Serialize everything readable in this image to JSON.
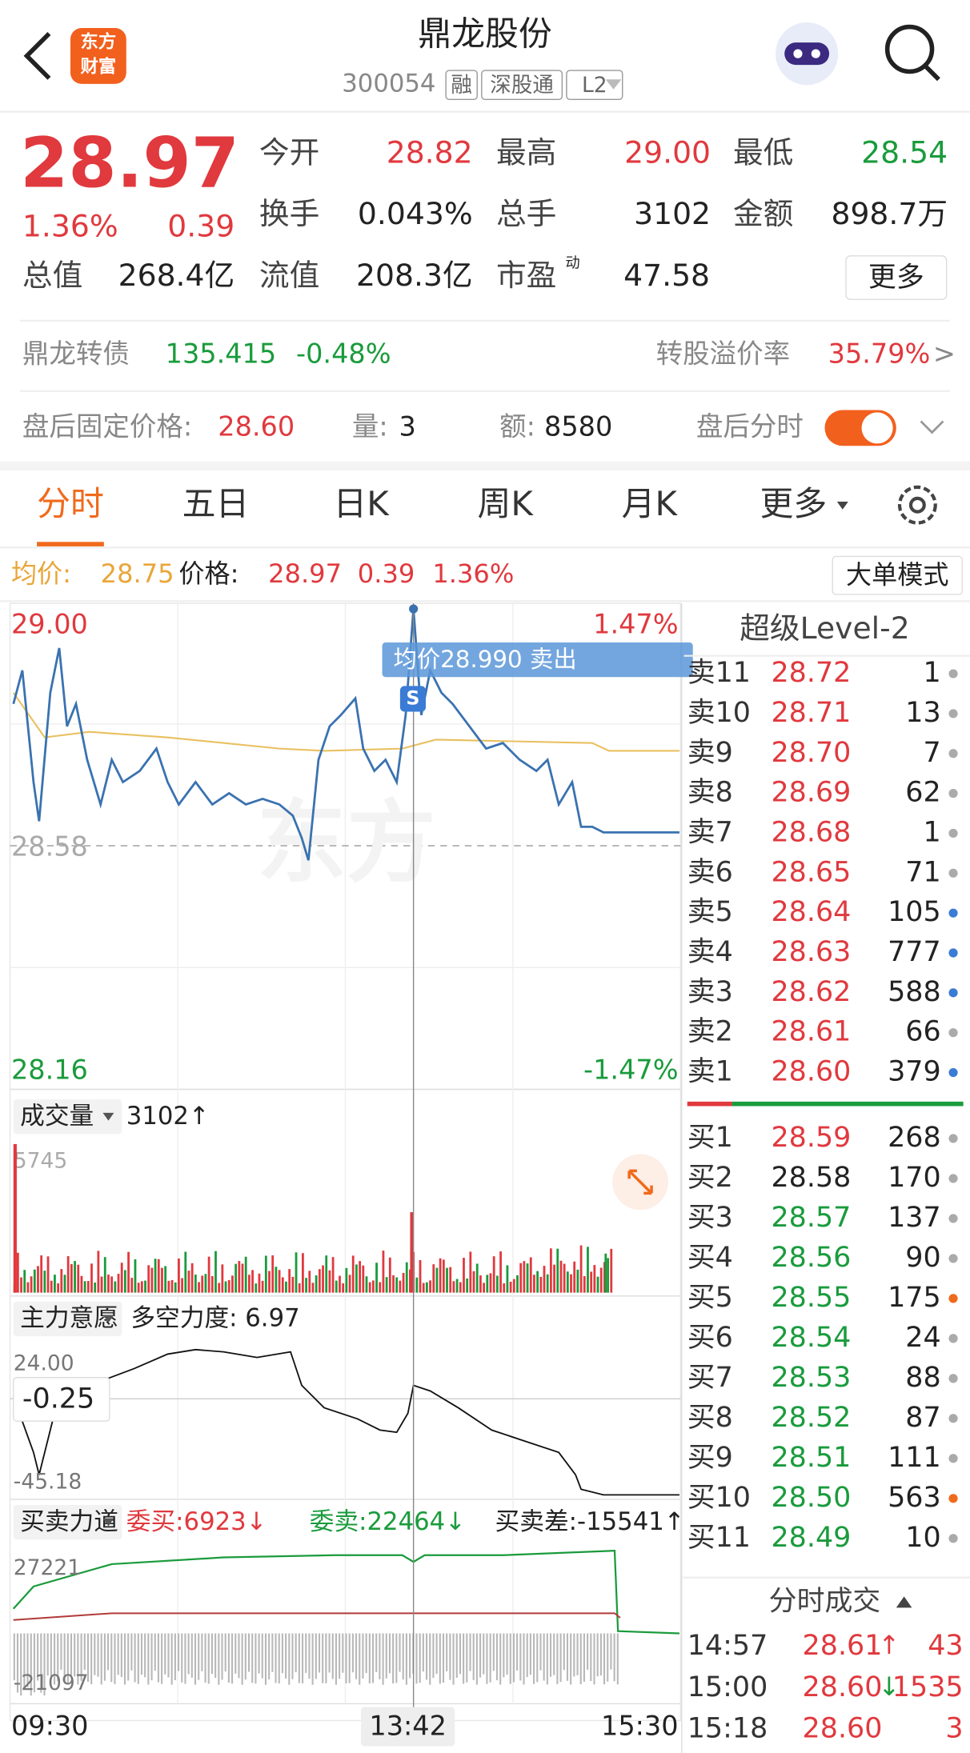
{
  "header": {
    "logo": [
      "东方",
      "财富"
    ],
    "title": "鼎龙股份",
    "code": "300054",
    "tags": [
      "融",
      "深股通",
      "L2"
    ]
  },
  "quote": {
    "price": "28.97",
    "change_pct": "1.36%",
    "change": "0.39",
    "fields": [
      {
        "label": "今开",
        "value": "28.82",
        "color": "#e0393e"
      },
      {
        "label": "最高",
        "value": "29.00",
        "color": "#e0393e"
      },
      {
        "label": "最低",
        "value": "28.54",
        "color": "#1a9b3c"
      },
      {
        "label": "换手",
        "value": "0.043%",
        "color": "#222"
      },
      {
        "label": "总手",
        "value": "3102",
        "color": "#222"
      },
      {
        "label": "金额",
        "value": "898.7万",
        "color": "#222"
      },
      {
        "label": "总值",
        "value": "268.4亿",
        "color": "#222"
      },
      {
        "label": "流值",
        "value": "208.3亿",
        "color": "#222"
      },
      {
        "label": "市盈",
        "value": "47.58",
        "color": "#222"
      }
    ],
    "pe_note": "动",
    "more": "更多"
  },
  "bond": {
    "name": "鼎龙转债",
    "price": "135.415",
    "pct": "-0.48%",
    "premium_label": "转股溢价率",
    "premium": "35.79%",
    "arrow": ">"
  },
  "after_hours": {
    "label": "盘后固定价格:",
    "price": "28.60",
    "vol_label": "量:",
    "vol": "3",
    "amt_label": "额:",
    "amt": "8580",
    "toggle_label": "盘后分时"
  },
  "tabs": [
    "分时",
    "五日",
    "日K",
    "周K",
    "月K",
    "更多"
  ],
  "legend": {
    "avg_label": "均价:",
    "avg": "28.75",
    "price_label": "价格:",
    "price": "28.97",
    "change": "0.39",
    "pct": "1.36%",
    "mode": "大单模式"
  },
  "chart": {
    "ymax": "29.00",
    "ymin": "28.16",
    "pct_max": "1.47%",
    "pct_min": "-1.47%",
    "prev": "28.58",
    "tooltip": "均价28.990  卖出",
    "marker": "S"
  },
  "volume": {
    "label": "成交量",
    "value": "3102↑",
    "max": "5745"
  },
  "main_force": {
    "label": "主力意愿",
    "title": "多空力度: 6.97",
    "top": "24.00",
    "bottom": "-45.18",
    "cursor": "-0.25"
  },
  "power": {
    "label": "买卖力道",
    "buy": "委买:6923↓",
    "sell": "委卖:22464↓",
    "diff": "买卖差:-15541↑",
    "top": "27221",
    "bottom": "-21097"
  },
  "xaxis": {
    "start": "09:30",
    "cursor": "13:42",
    "end": "15:30"
  },
  "orderbook": {
    "title": "超级Level-2",
    "asks": [
      {
        "label": "卖11",
        "price": "28.72",
        "vol": "1",
        "dot": "#aaa"
      },
      {
        "label": "卖10",
        "price": "28.71",
        "vol": "13",
        "dot": "#aaa"
      },
      {
        "label": "卖9",
        "price": "28.70",
        "vol": "7",
        "dot": "#aaa"
      },
      {
        "label": "卖8",
        "price": "28.69",
        "vol": "62",
        "dot": "#aaa"
      },
      {
        "label": "卖7",
        "price": "28.68",
        "vol": "1",
        "dot": "#aaa"
      },
      {
        "label": "卖6",
        "price": "28.65",
        "vol": "71",
        "dot": "#aaa"
      },
      {
        "label": "卖5",
        "price": "28.64",
        "vol": "105",
        "dot": "#3a7bd5"
      },
      {
        "label": "卖4",
        "price": "28.63",
        "vol": "777",
        "dot": "#3a7bd5"
      },
      {
        "label": "卖3",
        "price": "28.62",
        "vol": "588",
        "dot": "#3a7bd5"
      },
      {
        "label": "卖2",
        "price": "28.61",
        "vol": "66",
        "dot": "#aaa"
      },
      {
        "label": "卖1",
        "price": "28.60",
        "vol": "379",
        "dot": "#3a7bd5"
      }
    ],
    "bids": [
      {
        "label": "买1",
        "price": "28.59",
        "vol": "268",
        "dot": "#aaa"
      },
      {
        "label": "买2",
        "price": "28.58",
        "vol": "170",
        "dot": "#aaa"
      },
      {
        "label": "买3",
        "price": "28.57",
        "vol": "137",
        "dot": "#aaa"
      },
      {
        "label": "买4",
        "price": "28.56",
        "vol": "90",
        "dot": "#aaa"
      },
      {
        "label": "买5",
        "price": "28.55",
        "vol": "175",
        "dot": "#f06a1c"
      },
      {
        "label": "买6",
        "price": "28.54",
        "vol": "24",
        "dot": "#aaa"
      },
      {
        "label": "买7",
        "price": "28.53",
        "vol": "88",
        "dot": "#aaa"
      },
      {
        "label": "买8",
        "price": "28.52",
        "vol": "87",
        "dot": "#aaa"
      },
      {
        "label": "买9",
        "price": "28.51",
        "vol": "111",
        "dot": "#aaa"
      },
      {
        "label": "买10",
        "price": "28.50",
        "vol": "563",
        "dot": "#f06a1c"
      },
      {
        "label": "买11",
        "price": "28.49",
        "vol": "10",
        "dot": "#aaa"
      }
    ]
  },
  "trades": {
    "title": "分时成交",
    "rows": [
      {
        "time": "14:57",
        "price": "28.61",
        "dir": "↑",
        "vol": "43"
      },
      {
        "time": "15:00",
        "price": "28.60",
        "dir": "↓",
        "vol": "1535"
      },
      {
        "time": "15:18",
        "price": "28.60",
        "dir": "",
        "vol": "3"
      }
    ]
  }
}
